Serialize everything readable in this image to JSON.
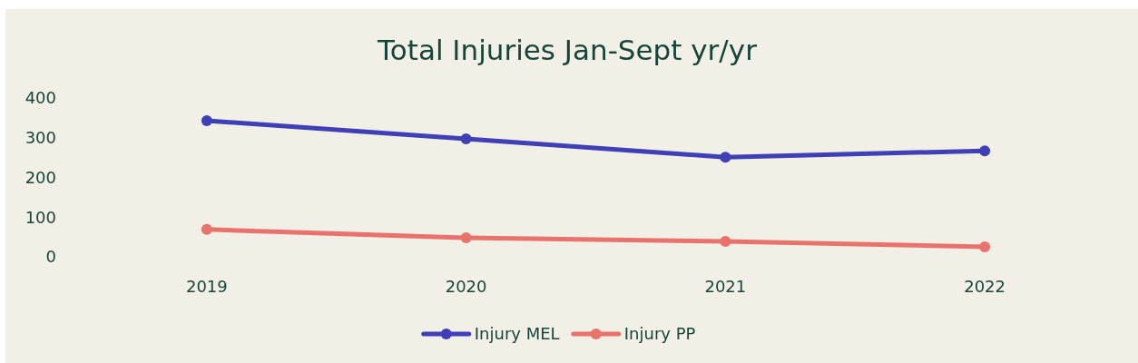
{
  "chart_data": {
    "type": "line",
    "title": "Total Injuries Jan-Sept yr/yr",
    "categories": [
      "2019",
      "2020",
      "2021",
      "2022"
    ],
    "series": [
      {
        "name": "Injury MEL",
        "color": "#3f3fb6",
        "values": [
          343,
          297,
          251,
          267
        ]
      },
      {
        "name": "Injury PP",
        "color": "#e8736c",
        "values": [
          69,
          48,
          39,
          25
        ]
      }
    ],
    "ylim": [
      0,
      400
    ],
    "yticks": [
      0,
      100,
      200,
      300,
      400
    ],
    "grid": false,
    "legend": "bottom",
    "marker": "circle",
    "line_style": "solid"
  }
}
